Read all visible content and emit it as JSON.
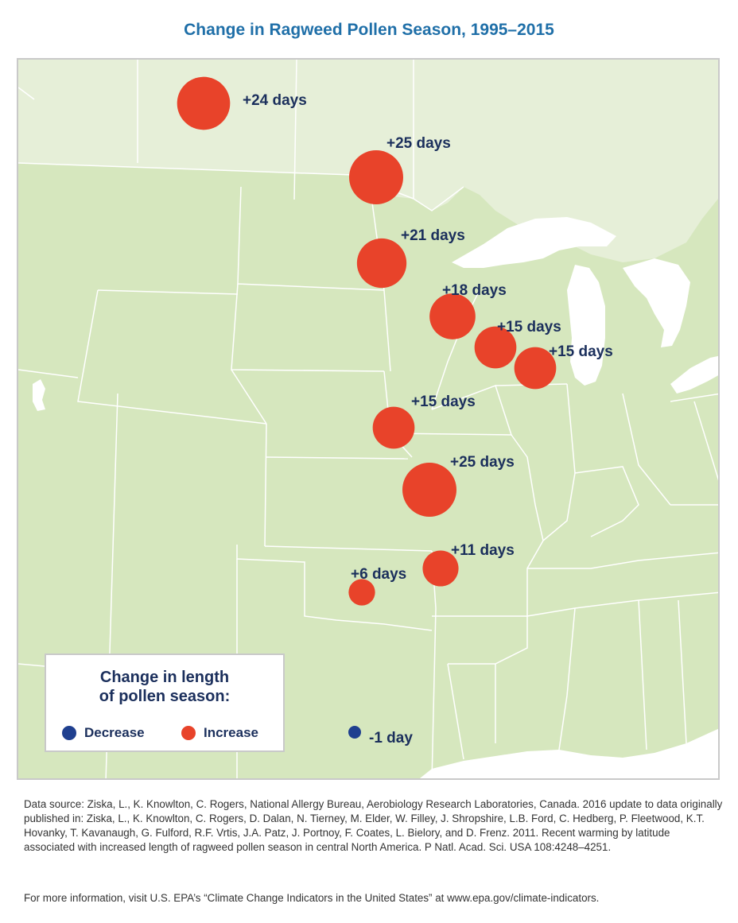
{
  "title": "Change in Ragweed Pollen Season, 1995–2015",
  "colors": {
    "increase": "#e8432a",
    "decrease": "#1f3f8f",
    "land_us": "#d6e7be",
    "land_canada": "#e6efd8",
    "water": "#ffffff",
    "borders": "#ffffff",
    "label_text": "#1b2f5c",
    "title_text": "#1f6fa8"
  },
  "legend": {
    "title_line1": "Change in length",
    "title_line2": "of pollen season:",
    "decrease_label": "Decrease",
    "increase_label": "Increase"
  },
  "locations": [
    {
      "label": "+24 days",
      "change_days": 24
    },
    {
      "label": "+25 days",
      "change_days": 25
    },
    {
      "label": "+21 days",
      "change_days": 21
    },
    {
      "label": "+18 days",
      "change_days": 18
    },
    {
      "label": "+15 days",
      "change_days": 15
    },
    {
      "label": "+15 days",
      "change_days": 15
    },
    {
      "label": "+15 days",
      "change_days": 15
    },
    {
      "label": "+25 days",
      "change_days": 25
    },
    {
      "label": "+11 days",
      "change_days": 11
    },
    {
      "label": "+6 days",
      "change_days": 6
    },
    {
      "label": "-1 day",
      "change_days": -1
    }
  ],
  "source_text": "Data source: Ziska, L., K. Knowlton, C. Rogers, National Allergy Bureau, Aerobiology Research Laboratories, Canada. 2016 update to data originally published in: Ziska, L., K. Knowlton, C. Rogers, D. Dalan, N. Tierney, M. Elder, W. Filley, J. Shropshire, L.B. Ford, C. Hedberg, P. Fleetwood, K.T. Hovanky, T. Kavanaugh, G. Fulford, R.F. Vrtis, J.A. Patz, J. Portnoy, F. Coates, L. Bielory, and D. Frenz. 2011. Recent warming by latitude associated with increased length of ragweed pollen season in central North America. P Natl. Acad. Sci. USA 108:4248–4251.",
  "more_info_text": "For more information, visit U.S. EPA’s “Climate Change Indicators in the United States” at www.epa.gov/climate-indicators."
}
